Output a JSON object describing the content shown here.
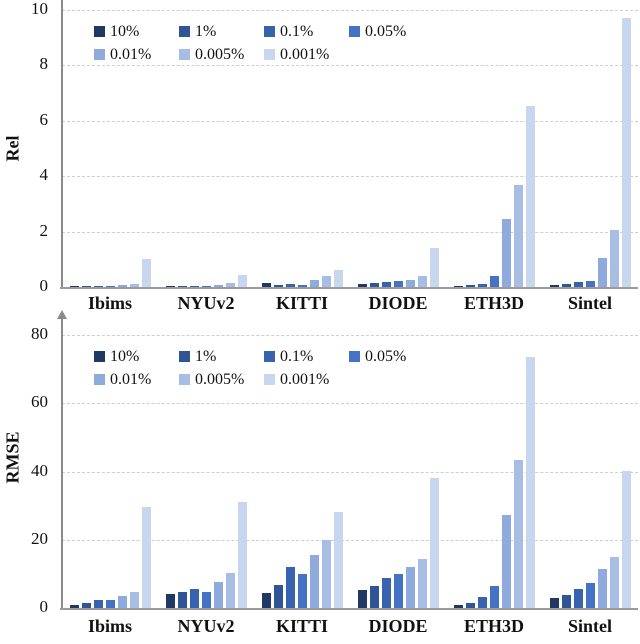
{
  "figure": {
    "categories": [
      "Ibims",
      "NYUv2",
      "KITTI",
      "DIODE",
      "ETH3D",
      "Sintel"
    ],
    "legend_labels": [
      "10%",
      "1%",
      "0.1%",
      "0.05%",
      "0.01%",
      "0.005%",
      "0.001%"
    ],
    "series_colors": [
      "#1F3864",
      "#2F5597",
      "#3763AE",
      "#4472C4",
      "#8FAADC",
      "#A8BDE3",
      "#C9D6EF"
    ],
    "grid_color": "#cfcfcf",
    "axis_color": "#8a8a8a"
  },
  "chart_data": [
    {
      "type": "bar",
      "title": "",
      "xlabel": "",
      "ylabel": "Rel",
      "ylim": [
        0,
        10
      ],
      "yticks": [
        0,
        2,
        4,
        6,
        8,
        10
      ],
      "grid": "dashed-horizontal",
      "legend_position": "top-left-inside",
      "categories": [
        "Ibims",
        "NYUv2",
        "KITTI",
        "DIODE",
        "ETH3D",
        "Sintel"
      ],
      "series": [
        {
          "name": "10%",
          "values": [
            0.02,
            0.02,
            0.13,
            0.12,
            0.05,
            0.06
          ]
        },
        {
          "name": "1%",
          "values": [
            0.02,
            0.02,
            0.06,
            0.14,
            0.06,
            0.1
          ]
        },
        {
          "name": "0.1%",
          "values": [
            0.03,
            0.03,
            0.1,
            0.19,
            0.12,
            0.18
          ]
        },
        {
          "name": "0.05%",
          "values": [
            0.04,
            0.04,
            0.08,
            0.22,
            0.4,
            0.22
          ]
        },
        {
          "name": "0.01%",
          "values": [
            0.07,
            0.08,
            0.26,
            0.27,
            2.45,
            1.05
          ]
        },
        {
          "name": "0.005%",
          "values": [
            0.12,
            0.13,
            0.4,
            0.4,
            3.7,
            2.05
          ]
        },
        {
          "name": "0.001%",
          "values": [
            1.0,
            0.45,
            0.62,
            1.4,
            6.55,
            9.7
          ]
        }
      ]
    },
    {
      "type": "bar",
      "title": "",
      "xlabel": "",
      "ylabel": "RMSE",
      "ylim": [
        0,
        80
      ],
      "yticks": [
        0,
        20,
        40,
        60,
        80
      ],
      "grid": "dashed-horizontal",
      "legend_position": "top-left-inside",
      "categories": [
        "Ibims",
        "NYUv2",
        "KITTI",
        "DIODE",
        "ETH3D",
        "Sintel"
      ],
      "series": [
        {
          "name": "10%",
          "values": [
            1.0,
            4.2,
            4.5,
            5.2,
            0.8,
            2.8
          ]
        },
        {
          "name": "1%",
          "values": [
            1.4,
            4.7,
            6.7,
            6.5,
            1.6,
            3.8
          ]
        },
        {
          "name": "0.1%",
          "values": [
            2.3,
            5.6,
            11.9,
            8.8,
            3.3,
            5.7
          ]
        },
        {
          "name": "0.05%",
          "values": [
            2.4,
            4.7,
            10.1,
            10.0,
            6.5,
            7.4
          ]
        },
        {
          "name": "0.01%",
          "values": [
            3.6,
            7.5,
            15.5,
            12.0,
            27.2,
            11.3
          ]
        },
        {
          "name": "0.005%",
          "values": [
            4.6,
            10.2,
            20.0,
            14.3,
            43.5,
            14.9
          ]
        },
        {
          "name": "0.001%",
          "values": [
            29.5,
            31.0,
            28.0,
            38.0,
            73.5,
            40.0
          ]
        }
      ]
    }
  ]
}
